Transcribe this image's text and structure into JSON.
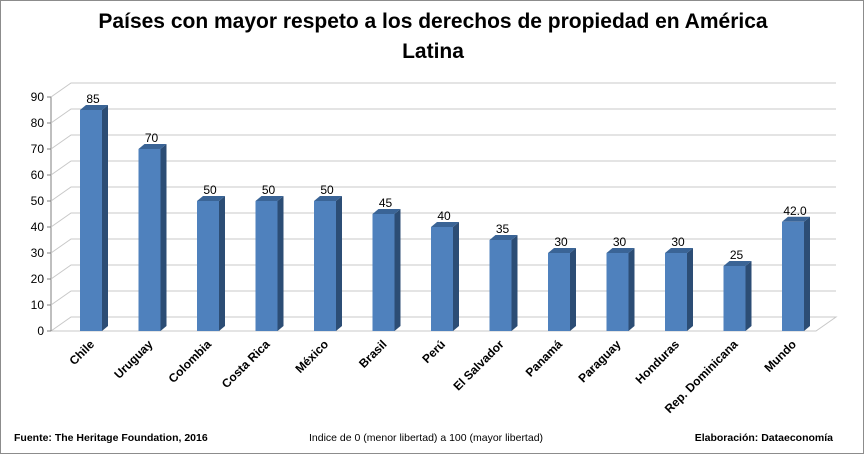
{
  "chart_data": {
    "type": "bar",
    "title": "Países con mayor respeto a los derechos de propiedad en América Latina",
    "title_lines": [
      "Países con mayor respeto a los derechos de propiedad en América",
      "Latina"
    ],
    "categories": [
      "Chile",
      "Uruguay",
      "Colombia",
      "Costa Rica",
      "México",
      "Brasil",
      "Perú",
      "El Salvador",
      "Panamá",
      "Paraguay",
      "Honduras",
      "Rep. Dominicana",
      "Mundo"
    ],
    "values": [
      85,
      70,
      50,
      50,
      50,
      45,
      40,
      35,
      30,
      30,
      30,
      25,
      42.0
    ],
    "value_labels": [
      "85",
      "70",
      "50",
      "50",
      "50",
      "45",
      "40",
      "35",
      "30",
      "30",
      "30",
      "25",
      "42.0"
    ],
    "ylim": [
      0,
      90
    ],
    "yticks": [
      0,
      10,
      20,
      30,
      40,
      50,
      60,
      70,
      80,
      90
    ],
    "grid": true,
    "legend": "none",
    "style": "3d-column",
    "colors": {
      "bar_front": "#4f81bd",
      "bar_top": "#3a6496",
      "bar_side": "#2c4d75",
      "grid": "#c8c8c8"
    }
  },
  "footer": {
    "source": "Fuente: The Heritage Foundation, 2016",
    "note": "Indice de 0 (menor libertad) a 100  (mayor libertad)",
    "credit": "Elaboración: Dataeconomía"
  }
}
